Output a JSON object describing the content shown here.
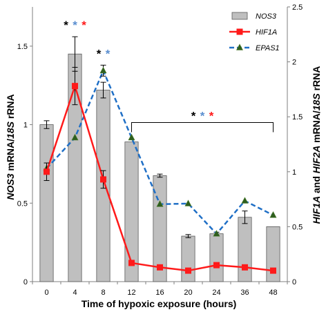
{
  "chart_data": {
    "type": "bar",
    "xlabel": "Time of hypoxic exposure (hours)",
    "ylabel_left": {
      "gene": "NOS3",
      "mid": " mRNA/",
      "ref": "18S",
      "unit": " rRNA"
    },
    "ylabel_right": {
      "g1": "HIF1A",
      "and": " and ",
      "g2": "HIF2A",
      "mid": " mRNA/",
      "ref": "18S",
      "unit": " rRNA"
    },
    "categories": [
      "0",
      "4",
      "8",
      "12",
      "16",
      "20",
      "24",
      "36",
      "48"
    ],
    "ylim_left": [
      0,
      1.75
    ],
    "yticks_left": [
      "0",
      "0.5",
      "1",
      "1.5"
    ],
    "ylim_right": [
      0,
      2.5
    ],
    "yticks_right": [
      "0",
      "0.5",
      "1",
      "1.5",
      "2",
      "2.5"
    ],
    "series": [
      {
        "name": "NOS3",
        "kind": "bar",
        "axis": "left",
        "color": "#bfbfbf",
        "values": [
          1.0,
          1.45,
          1.22,
          0.89,
          0.675,
          0.29,
          0.305,
          0.41,
          0.35
        ],
        "errors": [
          0.025,
          0.11,
          0.05,
          0.0,
          0.01,
          0.01,
          0.01,
          0.04,
          0.0
        ]
      },
      {
        "name": "HIF1A",
        "kind": "line",
        "axis": "right",
        "color": "#ff1a1a",
        "marker": "square",
        "values": [
          1.0,
          1.78,
          0.93,
          0.17,
          0.13,
          0.1,
          0.15,
          0.13,
          0.1
        ],
        "errors": [
          0.08,
          0.17,
          0.08,
          0.0,
          0.0,
          0.0,
          0.0,
          0.0,
          0.0
        ]
      },
      {
        "name": "EPAS1",
        "kind": "line",
        "axis": "right",
        "color": "#1f6fc6",
        "marker_color": "#2e5e1e",
        "dash": true,
        "marker": "triangle",
        "values": [
          1.03,
          1.31,
          1.92,
          1.31,
          0.705,
          0.71,
          0.435,
          0.735,
          0.605
        ],
        "errors": [
          0.0,
          0.0,
          0.05,
          0.0,
          0.0,
          0.0,
          0.0,
          0.0,
          0.0
        ]
      }
    ],
    "significance": [
      {
        "at": "4",
        "stars": [
          {
            "s": "*",
            "color": "#000000"
          },
          {
            "s": "*",
            "color": "#5b8fd0"
          },
          {
            "s": "*",
            "color": "#ff1a1a"
          }
        ]
      },
      {
        "at": "8",
        "stars": [
          {
            "s": "*",
            "color": "#000000"
          },
          {
            "s": "*",
            "color": "#5b8fd0"
          }
        ]
      },
      {
        "from": "12",
        "to": "48",
        "stars": [
          {
            "s": "*",
            "color": "#000000"
          },
          {
            "s": "*",
            "color": "#5b8fd0"
          },
          {
            "s": "*",
            "color": "#ff1a1a"
          }
        ]
      }
    ],
    "legend_position": "top-right",
    "grid": false
  }
}
